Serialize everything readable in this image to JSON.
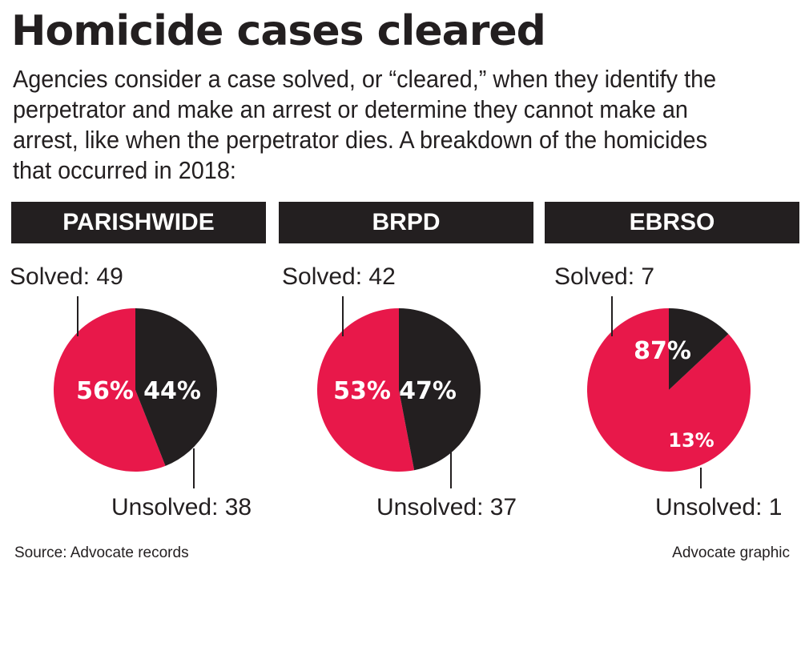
{
  "header": {
    "title": "Homicide cases cleared",
    "intro_lines": [
      "Agencies consider a case solved, or “cleared,” when they identify the",
      "perpetrator and make an arrest or determine they cannot make an",
      "arrest, like when the perpetrator dies. A breakdown of the homicides",
      "that occurred in 2018:"
    ]
  },
  "colors": {
    "solved": "#e8184a",
    "unsolved": "#231f20",
    "header_bg": "#231f20"
  },
  "chart_data": [
    {
      "type": "pie",
      "title": "PARISHWIDE",
      "slices": [
        {
          "name": "Solved",
          "count": 49,
          "percent": 56
        },
        {
          "name": "Unsolved",
          "count": 38,
          "percent": 44
        }
      ],
      "labels": {
        "solved": "Solved: 49",
        "unsolved": "Unsolved: 38",
        "solved_pct": "56%",
        "unsolved_pct": "44%"
      }
    },
    {
      "type": "pie",
      "title": "BRPD",
      "slices": [
        {
          "name": "Solved",
          "count": 42,
          "percent": 53
        },
        {
          "name": "Unsolved",
          "count": 37,
          "percent": 47
        }
      ],
      "labels": {
        "solved": "Solved: 42",
        "unsolved": "Unsolved: 37",
        "solved_pct": "53%",
        "unsolved_pct": "47%"
      }
    },
    {
      "type": "pie",
      "title": "EBRSO",
      "slices": [
        {
          "name": "Solved",
          "count": 7,
          "percent": 87
        },
        {
          "name": "Unsolved",
          "count": 1,
          "percent": 13
        }
      ],
      "labels": {
        "solved": "Solved: 7",
        "unsolved": "Unsolved: 1",
        "solved_pct": "87%",
        "unsolved_pct": "13%"
      }
    }
  ],
  "footer": {
    "source": "Source: Advocate records",
    "credit": "Advocate graphic"
  }
}
